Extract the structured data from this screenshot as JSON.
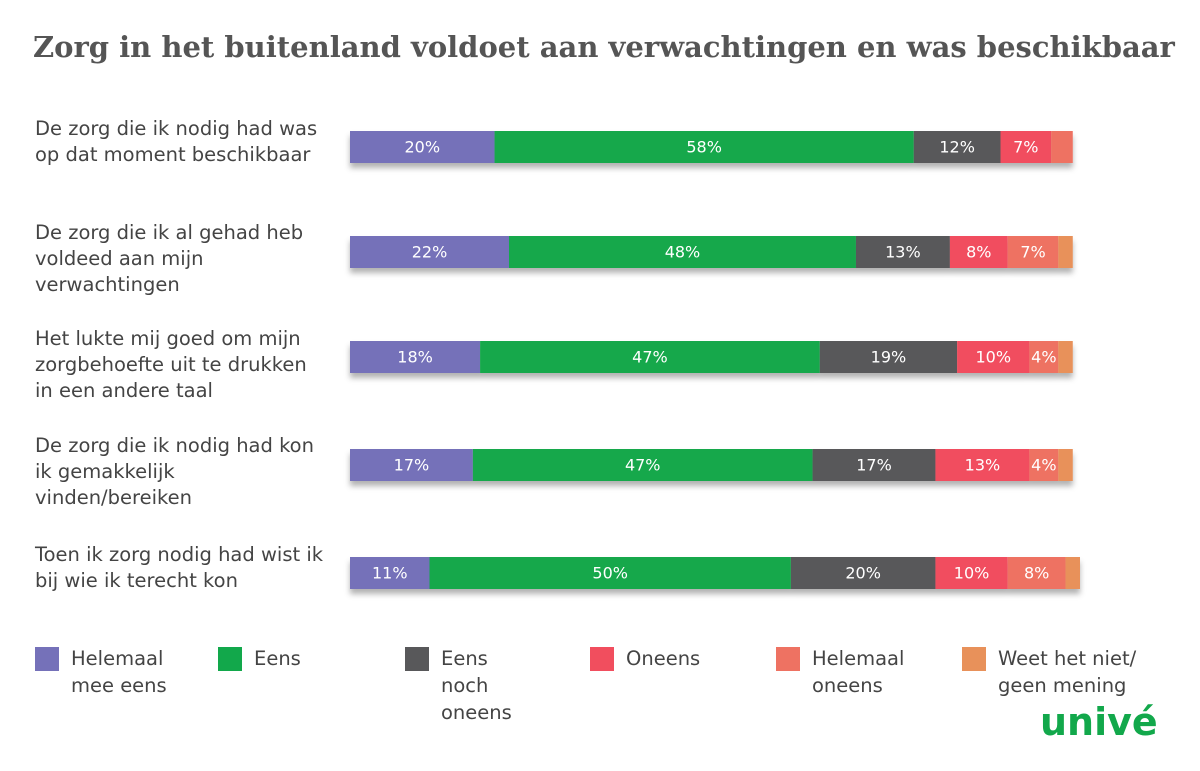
{
  "chart_data": {
    "type": "stacked-bar-horizontal",
    "title": "Zorg in het buitenland voldoet aan verwachtingen en was beschikbaar",
    "categories": [
      "De zorg die ik nodig had was op dat moment beschikbaar",
      "De zorg die ik al gehad heb voldeed aan mijn verwachtingen",
      "Het lukte mij goed om mijn zorgbehoefte uit te drukken in een andere taal",
      "De zorg die ik nodig had kon ik gemakkelijk vinden/bereiken",
      "Toen ik zorg nodig had wist ik bij wie ik terecht kon"
    ],
    "series": [
      {
        "name": "Helemaal mee eens",
        "color": "#7571b9",
        "values": [
          20,
          22,
          18,
          17,
          11
        ],
        "value_labels": [
          "20%",
          "22%",
          "18%",
          "17%",
          "11%"
        ]
      },
      {
        "name": "Eens",
        "color": "#12a84b",
        "values": [
          58,
          48,
          47,
          47,
          50
        ],
        "value_labels": [
          "58%",
          "48%",
          "47%",
          "47%",
          "50%"
        ]
      },
      {
        "name": "Eens noch oneens",
        "color": "#58585a",
        "values": [
          12,
          13,
          19,
          17,
          20
        ],
        "value_labels": [
          "12%",
          "13%",
          "19%",
          "17%",
          "20%"
        ]
      },
      {
        "name": "Oneens",
        "color": "#f14e5e",
        "values": [
          7,
          8,
          10,
          13,
          10
        ],
        "value_labels": [
          "7%",
          "8%",
          "10%",
          "13%",
          "10%"
        ]
      },
      {
        "name": "Helemaal oneens",
        "color": "#ee7262",
        "values": [
          3,
          7,
          4,
          4,
          8
        ],
        "value_labels": [
          null,
          "7%",
          "4%",
          "4%",
          "8%"
        ]
      },
      {
        "name": "Weet het niet/ geen mening",
        "color": "#e8915a",
        "values": [
          0,
          2,
          2,
          2,
          2
        ],
        "value_labels": [
          null,
          null,
          null,
          null,
          null
        ]
      }
    ],
    "legend": "bottom",
    "logo": "univé"
  }
}
